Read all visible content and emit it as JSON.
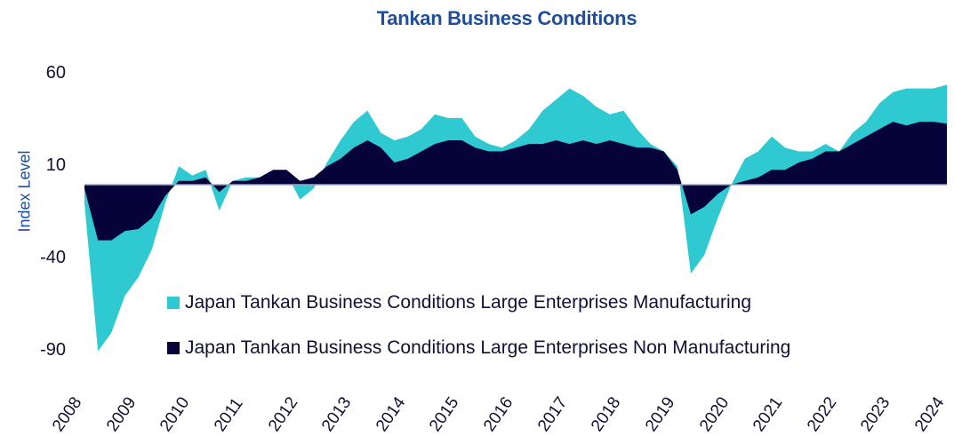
{
  "chart_data": {
    "type": "area",
    "title": "Tankan Business Conditions",
    "xlabel": "",
    "ylabel": "Index Level",
    "ylim": [
      -90,
      60
    ],
    "yticks": [
      60,
      10,
      -40,
      -90
    ],
    "xticks": [
      "2008",
      "2009",
      "2010",
      "2011",
      "2012",
      "2013",
      "2014",
      "2015",
      "2016",
      "2017",
      "2018",
      "2019",
      "2020",
      "2021",
      "2022",
      "2023",
      "2024"
    ],
    "grid": false,
    "legend_position": "inside-bottom-center",
    "frequency": "quarterly",
    "x_start": "2008Q1",
    "x_end": "2024Q1",
    "series": [
      {
        "name": "Japan Tankan Business Conditions Large Enterprises Manufacturing",
        "color": "#2ec9d1",
        "values": [
          -10,
          -90,
          -80,
          -60,
          -50,
          -35,
          -10,
          10,
          5,
          8,
          -14,
          2,
          4,
          4,
          6,
          6,
          -8,
          -2,
          12,
          24,
          34,
          40,
          28,
          24,
          26,
          30,
          38,
          36,
          36,
          26,
          22,
          20,
          24,
          30,
          40,
          46,
          52,
          48,
          42,
          38,
          40,
          30,
          22,
          18,
          10,
          -48,
          -38,
          -18,
          0,
          14,
          18,
          26,
          20,
          18,
          18,
          22,
          18,
          28,
          34,
          44,
          50,
          52,
          52,
          52,
          54
        ]
      },
      {
        "name": "Japan Tankan Business Conditions Large Enterprises Non Manufacturing",
        "color": "#06033a",
        "values": [
          -2,
          -30,
          -30,
          -25,
          -24,
          -18,
          -6,
          2,
          2,
          4,
          -4,
          2,
          2,
          4,
          8,
          8,
          2,
          4,
          10,
          14,
          20,
          24,
          20,
          12,
          14,
          18,
          22,
          24,
          24,
          20,
          18,
          18,
          20,
          22,
          22,
          24,
          22,
          24,
          22,
          24,
          22,
          20,
          20,
          18,
          8,
          -16,
          -12,
          -5,
          0,
          2,
          4,
          8,
          8,
          12,
          14,
          18,
          18,
          22,
          26,
          30,
          34,
          32,
          34,
          34,
          33
        ]
      }
    ]
  },
  "legend": {
    "manufacturing": "Japan Tankan Business Conditions Large Enterprises Manufacturing",
    "non_manufacturing": "Japan Tankan Business Conditions Large Enterprises Non Manufacturing"
  },
  "colors": {
    "manufacturing": "#2ec9d1",
    "non_manufacturing": "#06033a",
    "title": "#1f4e9c",
    "baseline": "#9aa6c8"
  }
}
